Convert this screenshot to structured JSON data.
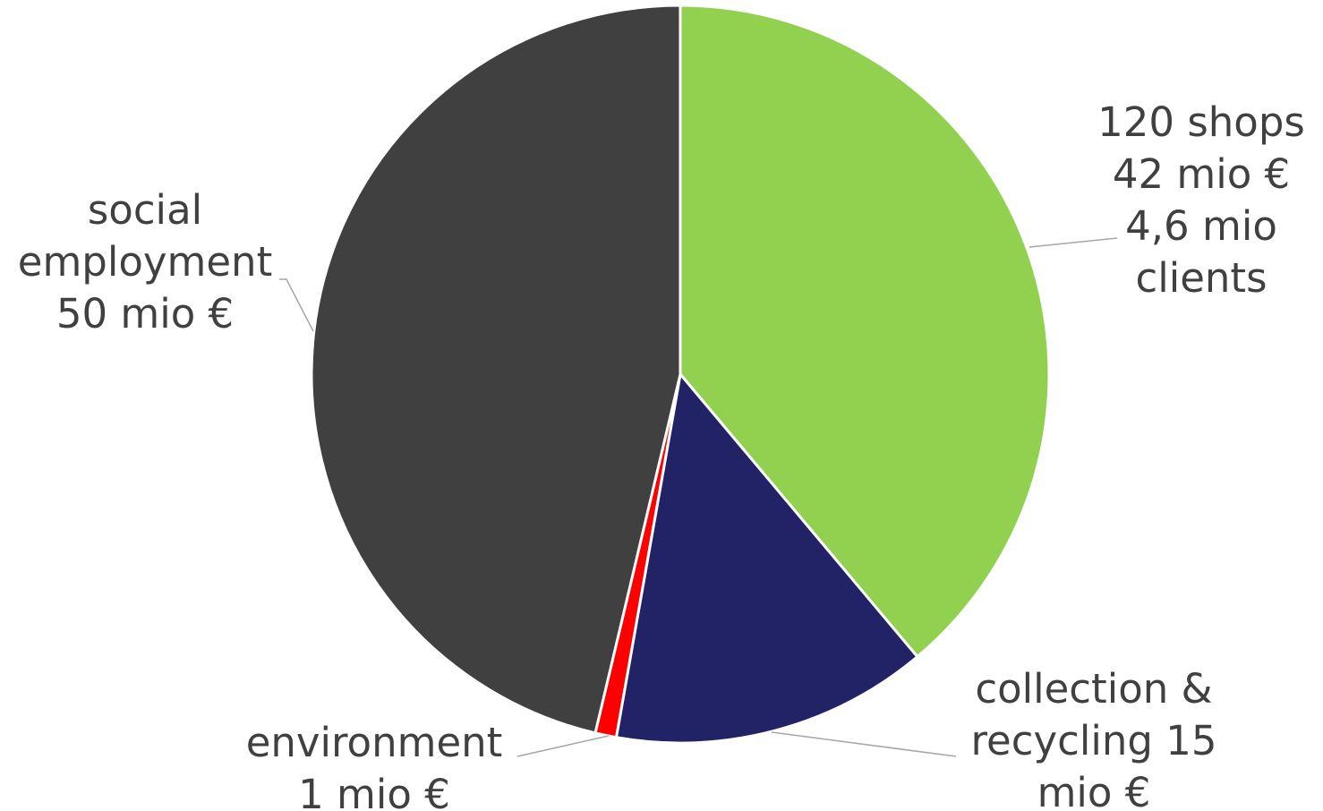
{
  "chart_data": {
    "type": "pie",
    "start_angle_deg": 0,
    "direction": "clockwise",
    "slices": [
      {
        "name": "shops",
        "value": 42,
        "color": "#92d050",
        "label_lines": [
          "120 shops",
          "42 mio €",
          "4,6 mio",
          "clients"
        ]
      },
      {
        "name": "collection & recycling",
        "value": 15,
        "color": "#222266",
        "label_lines": [
          "collection &",
          "recycling 15",
          "mio €"
        ]
      },
      {
        "name": "environment",
        "value": 1,
        "color": "#ff0000",
        "label_lines": [
          "environment",
          "1 mio €"
        ]
      },
      {
        "name": "social employment",
        "value": 50,
        "color": "#404040",
        "label_lines": [
          "social",
          "employment",
          "50 mio €"
        ]
      }
    ],
    "legend": "none",
    "data_labels": "outside with leader lines"
  }
}
